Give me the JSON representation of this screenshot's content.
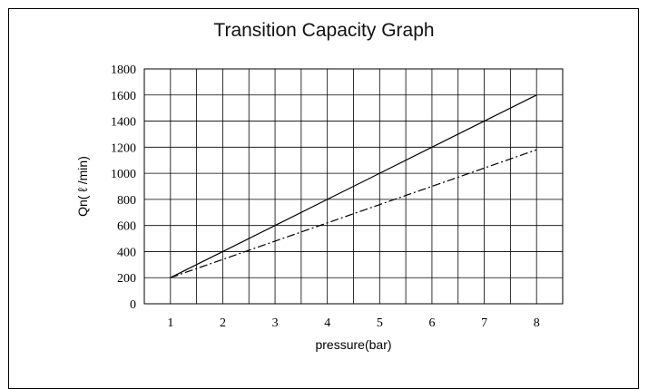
{
  "chart_data": {
    "type": "line",
    "title": "Transition Capacity Graph",
    "xlabel": "pressure(bar)",
    "ylabel": "Qn( ℓ /min)",
    "x": [
      1,
      2,
      3,
      4,
      5,
      6,
      7,
      8
    ],
    "xlim": [
      0.5,
      8.5
    ],
    "ylim": [
      0,
      1800
    ],
    "yticks": [
      0,
      200,
      400,
      600,
      800,
      1000,
      1200,
      1400,
      1600,
      1800
    ],
    "xticks": [
      1,
      2,
      3,
      4,
      5,
      6,
      7,
      8
    ],
    "grid": true,
    "legend": "none",
    "series": [
      {
        "style": "solid",
        "values": [
          200,
          400,
          600,
          800,
          1000,
          1200,
          1400,
          1600
        ]
      },
      {
        "style": "dash-dot",
        "values": [
          200,
          340,
          480,
          620,
          760,
          900,
          1040,
          1180
        ]
      }
    ]
  }
}
